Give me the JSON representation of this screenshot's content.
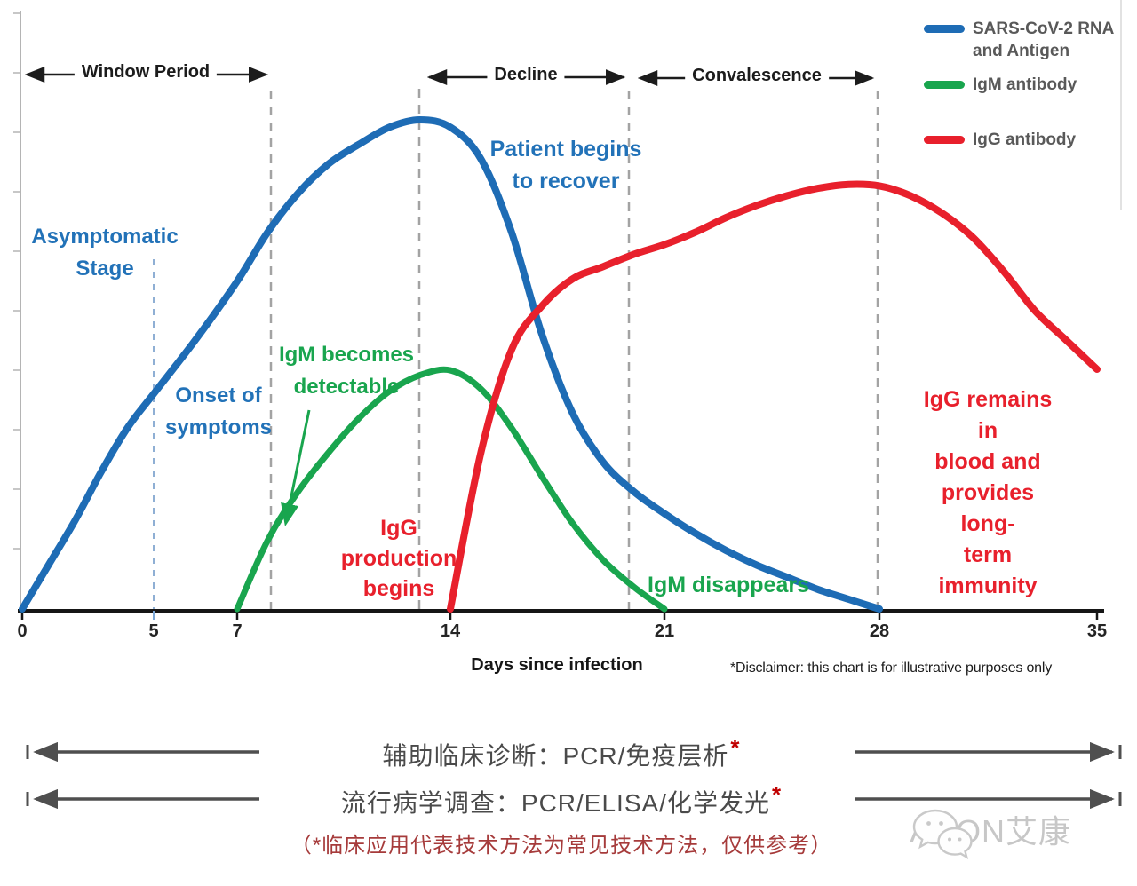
{
  "chart_data": {
    "type": "line",
    "title": "",
    "xlabel": "Days since infection",
    "ylabel": "",
    "grid": false,
    "legend_position": "top-right",
    "x_range": [
      0,
      35
    ],
    "x_ticks": [
      0,
      5,
      7,
      14,
      21,
      28,
      35
    ],
    "y_axis_note": "relative level, unlabeled axis (illustrative)",
    "disclaimer": "*Disclaimer: this chart is for illustrative purposes only",
    "series": [
      {
        "name": "SARS-CoV-2 RNA and Antigen",
        "color": "#1e6cb5",
        "points": [
          [
            0,
            0
          ],
          [
            1,
            9
          ],
          [
            2,
            18
          ],
          [
            3,
            28
          ],
          [
            4,
            37
          ],
          [
            5,
            44
          ],
          [
            6,
            55
          ],
          [
            7,
            67
          ],
          [
            8,
            77
          ],
          [
            9,
            85
          ],
          [
            10,
            91
          ],
          [
            11,
            95
          ],
          [
            12,
            98.5
          ],
          [
            13,
            100
          ],
          [
            14,
            98.5
          ],
          [
            15,
            92
          ],
          [
            16,
            77
          ],
          [
            17,
            56
          ],
          [
            18,
            40
          ],
          [
            19,
            30
          ],
          [
            20,
            24
          ],
          [
            21,
            19.5
          ],
          [
            22,
            15.5
          ],
          [
            23,
            12
          ],
          [
            24,
            9
          ],
          [
            25,
            6.5
          ],
          [
            26,
            4
          ],
          [
            27,
            2
          ],
          [
            28,
            0
          ]
        ]
      },
      {
        "name": "IgM antibody",
        "color": "#19a54e",
        "points": [
          [
            7,
            0
          ],
          [
            8,
            14
          ],
          [
            9,
            24
          ],
          [
            10,
            32
          ],
          [
            11,
            39
          ],
          [
            12,
            44.5
          ],
          [
            13,
            47.8
          ],
          [
            14,
            48.8
          ],
          [
            15,
            45
          ],
          [
            16,
            37
          ],
          [
            17,
            27
          ],
          [
            18,
            17.5
          ],
          [
            19,
            10
          ],
          [
            20,
            4.5
          ],
          [
            21,
            0
          ]
        ]
      },
      {
        "name": "IgG antibody",
        "color": "#e8202c",
        "points": [
          [
            14,
            0
          ],
          [
            15,
            32
          ],
          [
            16,
            53
          ],
          [
            17,
            62
          ],
          [
            18,
            67.5
          ],
          [
            19,
            70
          ],
          [
            20,
            72.5
          ],
          [
            21,
            74.5
          ],
          [
            22,
            77
          ],
          [
            23,
            80
          ],
          [
            24,
            82.5
          ],
          [
            25,
            84.5
          ],
          [
            26,
            86
          ],
          [
            27,
            86.8
          ],
          [
            28,
            86.5
          ],
          [
            29,
            84.5
          ],
          [
            30,
            81
          ],
          [
            31,
            76
          ],
          [
            32,
            69
          ],
          [
            33,
            61
          ],
          [
            34,
            55
          ],
          [
            35,
            49
          ]
        ]
      }
    ],
    "phases": [
      {
        "label": "Window Period",
        "from_day": 0,
        "to_day": 8.1
      },
      {
        "label": "Decline",
        "from_day": 13,
        "to_day": 19.8
      },
      {
        "label": "Convalescence",
        "from_day": 19.8,
        "to_day": 27.9
      }
    ],
    "annotations": [
      {
        "text": "Asymptomatic\nStage",
        "color": "#2272b8",
        "day": 2.7,
        "level": 73
      },
      {
        "text": "Onset of\nsymptoms",
        "color": "#2272b8",
        "day": 6.4,
        "level": 42
      },
      {
        "text": "IgM becomes\ndetectable",
        "color": "#19a54e",
        "day": 10.5,
        "level": 51
      },
      {
        "text": "IgG\nproduction\nbegins",
        "color": "#e8202c",
        "day": 12.3,
        "level": 12
      },
      {
        "text": "Patient begins\nto recover",
        "color": "#2272b8",
        "day": 17.7,
        "level": 91
      },
      {
        "text": "IgM disappears",
        "color": "#19a54e",
        "day": 23,
        "level": 4.5
      },
      {
        "text": "IgG remains in\nblood and\nprovides long-\nterm immunity",
        "color": "#e8202c",
        "day": 31.4,
        "level": 33
      }
    ]
  },
  "legend": {
    "item1": "SARS-CoV-2  RNA\nand Antigen",
    "item2": "IgM antibody",
    "item3": "IgG antibody"
  },
  "axis": {
    "ticks": [
      "0",
      "5",
      "7",
      "14",
      "21",
      "28",
      "35"
    ]
  },
  "bottom": {
    "line1_text": "辅助临床诊断：PCR/免疫层析",
    "line1_star": "*",
    "line2_text": "流行病学调查：PCR/ELISA/化学发光",
    "line2_star": "*",
    "line3": "（*临床应用代表技术方法为常见技术方法，仅供参考）"
  },
  "logo": {
    "text": "ACON艾康"
  }
}
